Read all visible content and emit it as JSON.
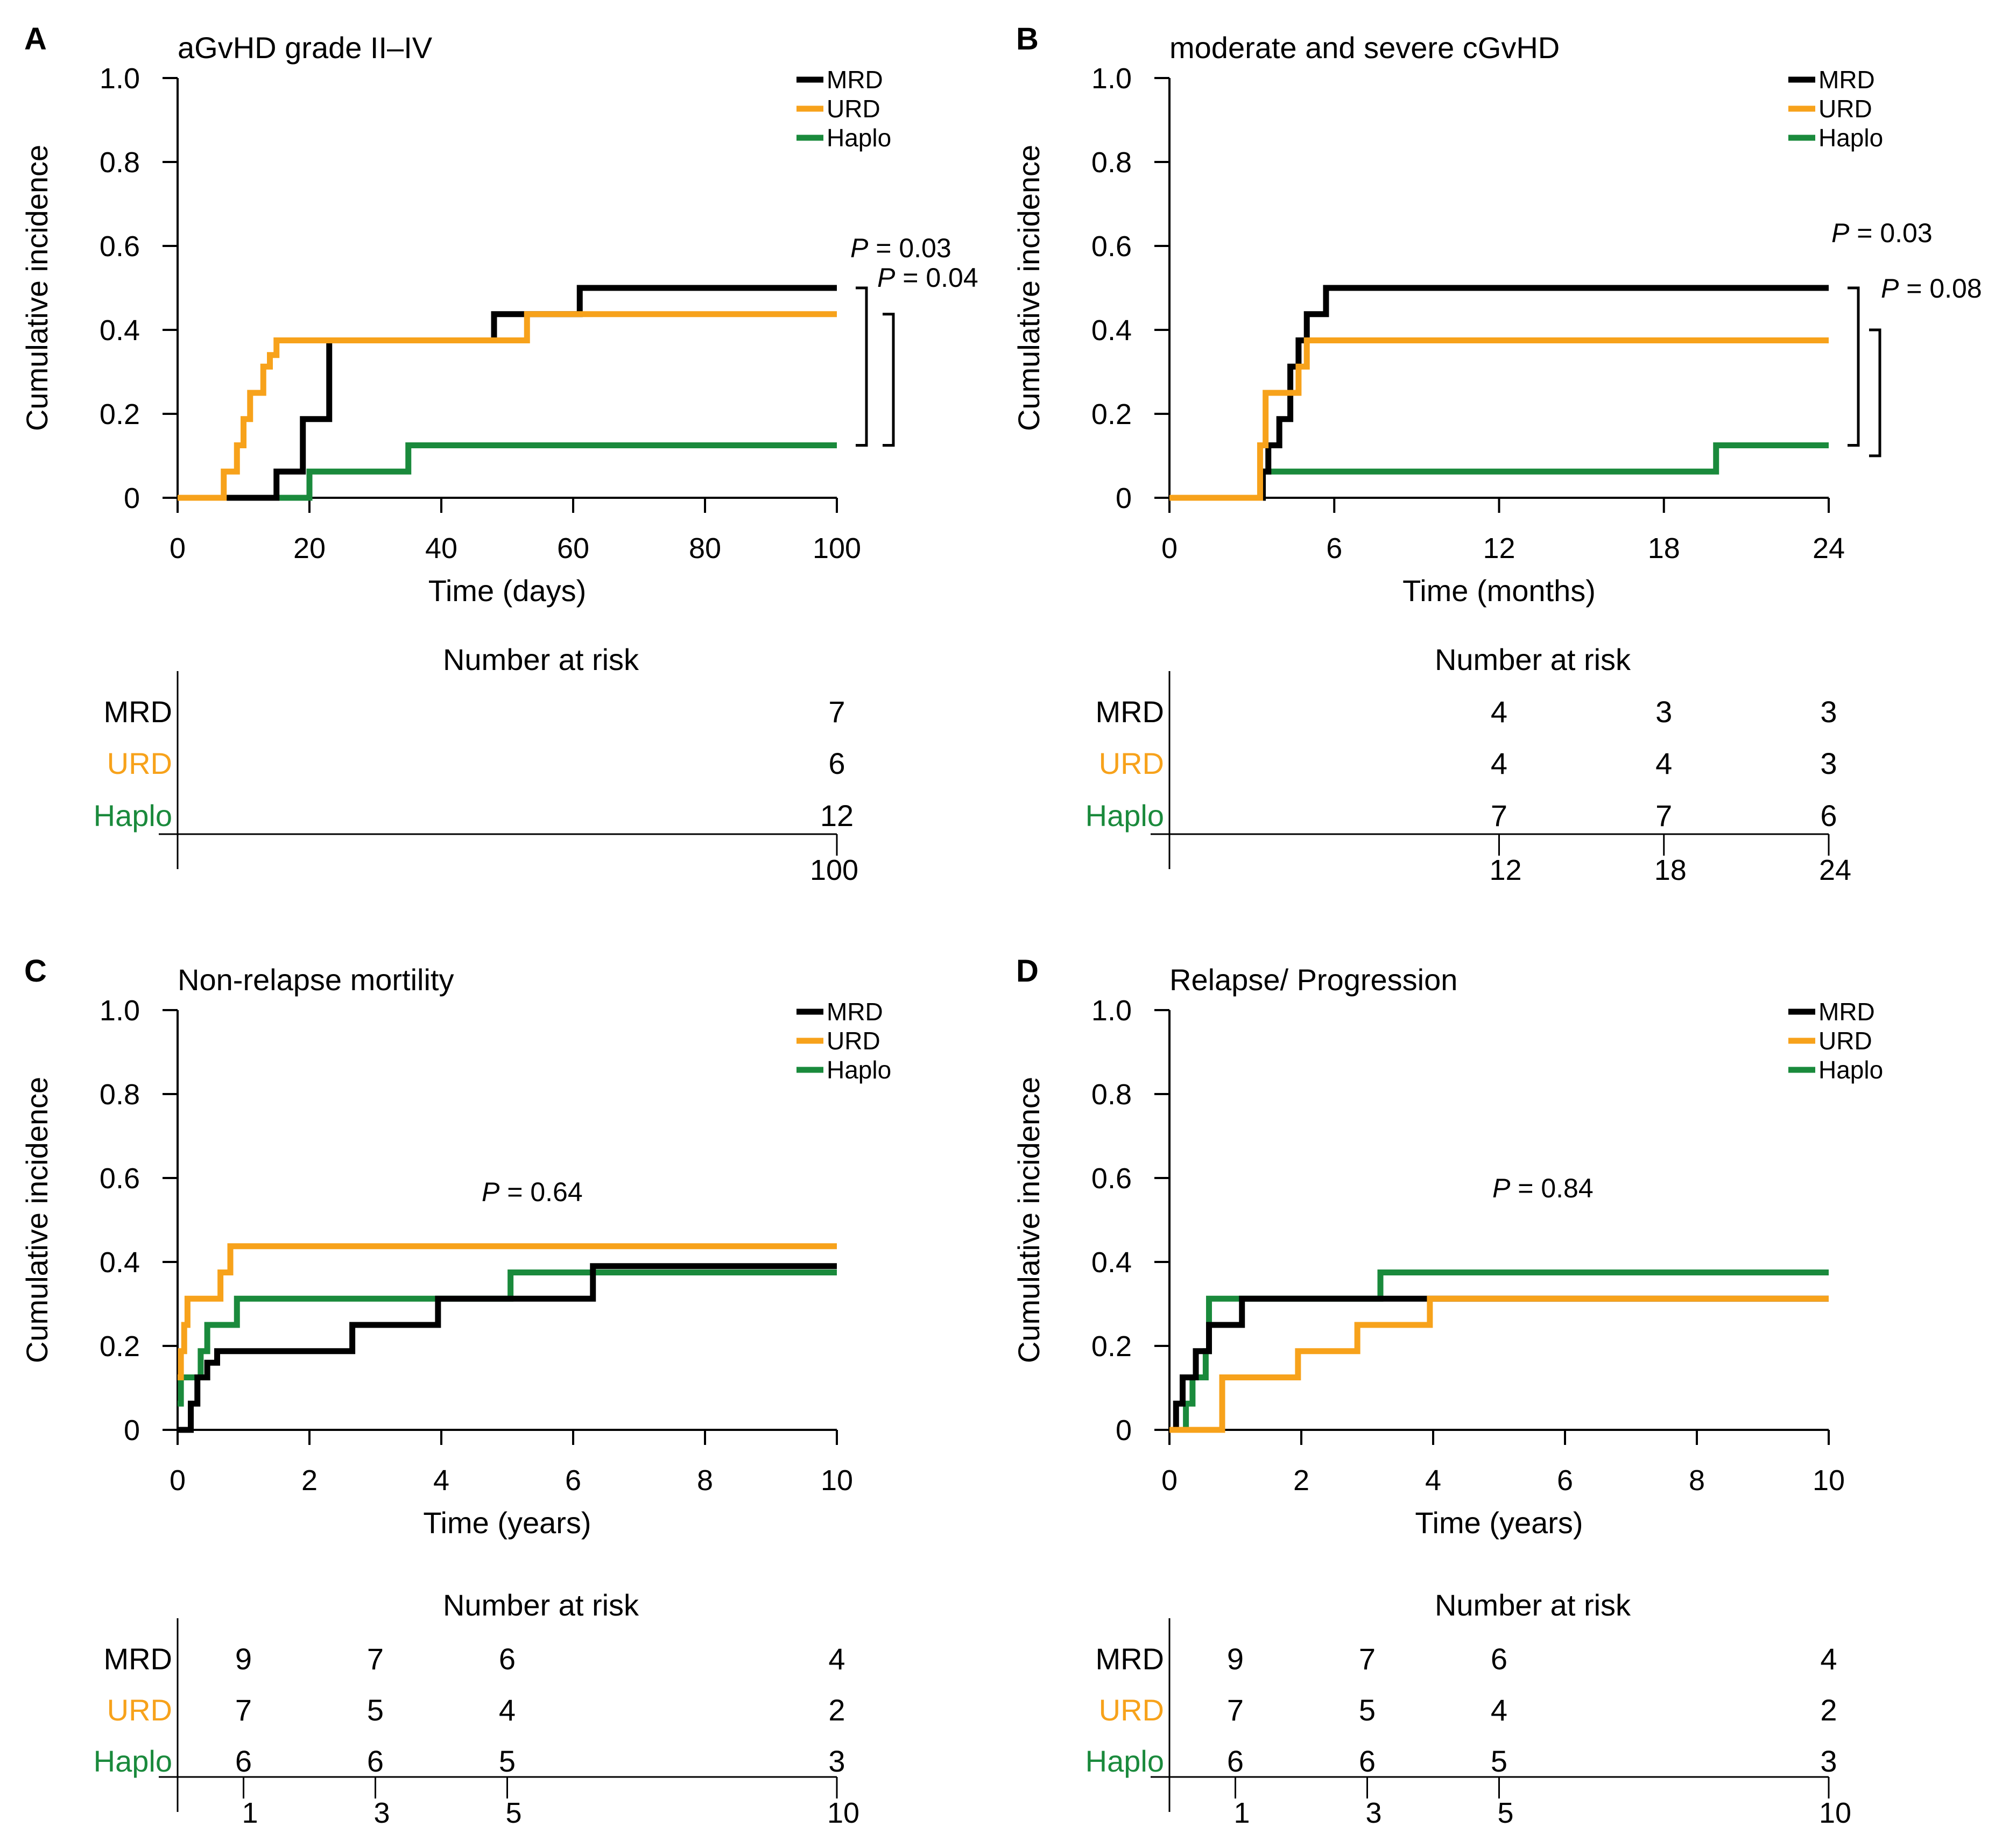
{
  "colors": {
    "MRD": "#000000",
    "URD": "#f7a21b",
    "Haplo": "#1a8a3c"
  },
  "chart_data": [
    {
      "panel": "A",
      "type": "line",
      "title": "aGvHD grade II–IV",
      "xlabel": "Time (days)",
      "ylabel": "Cumulative incidence",
      "xlim": [
        0,
        100
      ],
      "ylim": [
        0,
        1
      ],
      "xticks": [
        0,
        20,
        40,
        60,
        80,
        100
      ],
      "xtick_labels": [
        "0",
        "20",
        "40",
        "60",
        "80",
        "100"
      ],
      "yticks": [
        0,
        0.2,
        0.4,
        0.6,
        0.8,
        1.0
      ],
      "ytick_labels": [
        "0",
        "0.2",
        "0.4",
        "0.6",
        "0.8",
        "1.0"
      ],
      "legend": [
        "MRD",
        "URD",
        "Haplo"
      ],
      "series": [
        {
          "name": "MRD",
          "x": [
            0,
            15,
            19,
            23,
            48,
            61,
            100
          ],
          "y": [
            0,
            0.0625,
            0.1875,
            0.375,
            0.4375,
            0.5,
            0.5
          ]
        },
        {
          "name": "URD",
          "x": [
            0,
            7,
            9,
            10,
            11,
            13,
            14,
            15,
            53,
            100
          ],
          "y": [
            0,
            0.0625,
            0.125,
            0.1875,
            0.25,
            0.3125,
            0.34,
            0.375,
            0.4375,
            0.4375
          ]
        },
        {
          "name": "Haplo",
          "x": [
            0,
            20,
            35,
            100
          ],
          "y": [
            0,
            0.0625,
            0.125,
            0.125
          ]
        }
      ],
      "pvalues": [
        {
          "prefix": "P",
          "value": " = 0.03",
          "from": "MRD",
          "to": "Haplo"
        },
        {
          "prefix": "P",
          "value": " = 0.04",
          "from": "URD",
          "to": "Haplo"
        }
      ],
      "risk_table": {
        "title": "Number at risk",
        "time_labels": [
          "100"
        ],
        "time_values": [
          100
        ],
        "rows": [
          {
            "name": "MRD",
            "counts": [
              "7"
            ]
          },
          {
            "name": "URD",
            "counts": [
              "6"
            ]
          },
          {
            "name": "Haplo",
            "counts": [
              "12"
            ]
          }
        ]
      }
    },
    {
      "panel": "B",
      "type": "line",
      "title": "moderate and severe cGvHD",
      "xlabel": "Time (months)",
      "ylabel": "Cumulative incidence",
      "xlim": [
        0,
        24
      ],
      "ylim": [
        0,
        1
      ],
      "xticks": [
        0,
        6,
        12,
        18,
        24
      ],
      "xtick_labels": [
        "0",
        "6",
        "12",
        "18",
        "24"
      ],
      "yticks": [
        0,
        0.2,
        0.4,
        0.6,
        0.8,
        1.0
      ],
      "ytick_labels": [
        "0",
        "0.2",
        "0.4",
        "0.6",
        "0.8",
        "1.0"
      ],
      "legend": [
        "MRD",
        "URD",
        "Haplo"
      ],
      "series": [
        {
          "name": "MRD",
          "x": [
            0,
            3.4,
            3.6,
            4.0,
            4.4,
            4.7,
            5.0,
            5.7,
            24
          ],
          "y": [
            0,
            0.0625,
            0.125,
            0.1875,
            0.3125,
            0.375,
            0.4375,
            0.5,
            0.5
          ]
        },
        {
          "name": "URD",
          "x": [
            0,
            3.3,
            3.5,
            4.7,
            5.0,
            24
          ],
          "y": [
            0,
            0.125,
            0.25,
            0.3125,
            0.375,
            0.375
          ]
        },
        {
          "name": "Haplo",
          "x": [
            0,
            3.4,
            19.9,
            24
          ],
          "y": [
            0,
            0.0625,
            0.125,
            0.125
          ]
        }
      ],
      "pvalues": [
        {
          "prefix": "P",
          "value": " = 0.03",
          "from": "MRD",
          "to": "Haplo"
        },
        {
          "prefix": "P",
          "value": " = 0.08",
          "from": "URD",
          "to": "Haplo"
        }
      ],
      "risk_table": {
        "title": "Number at risk",
        "time_labels": [
          "12",
          "18",
          "24"
        ],
        "time_values": [
          12,
          18,
          24
        ],
        "rows": [
          {
            "name": "MRD",
            "counts": [
              "4",
              "3",
              "3"
            ]
          },
          {
            "name": "URD",
            "counts": [
              "4",
              "4",
              "3"
            ]
          },
          {
            "name": "Haplo",
            "counts": [
              "7",
              "7",
              "6"
            ]
          }
        ]
      }
    },
    {
      "panel": "C",
      "type": "line",
      "title": "Non-relapse mortility",
      "xlabel": "Time (years)",
      "ylabel": "Cumulative incidence",
      "xlim": [
        0,
        10
      ],
      "ylim": [
        0,
        1
      ],
      "xticks": [
        0,
        2,
        4,
        6,
        8,
        10
      ],
      "xtick_labels": [
        "0",
        "2",
        "4",
        "6",
        "8",
        "10"
      ],
      "yticks": [
        0,
        0.2,
        0.4,
        0.6,
        0.8,
        1.0
      ],
      "ytick_labels": [
        "0",
        "0.2",
        "0.4",
        "0.6",
        "0.8",
        "1.0"
      ],
      "legend": [
        "MRD",
        "URD",
        "Haplo"
      ],
      "series": [
        {
          "name": "MRD",
          "x": [
            0,
            0.2,
            0.3,
            0.45,
            0.6,
            2.65,
            3.95,
            6.3,
            10
          ],
          "y": [
            0,
            0.0625,
            0.125,
            0.16,
            0.1875,
            0.25,
            0.3125,
            0.39,
            0.39
          ]
        },
        {
          "name": "URD",
          "x": [
            0,
            0.05,
            0.1,
            0.15,
            0.2,
            0.65,
            0.8,
            10
          ],
          "y": [
            0.125,
            0.1875,
            0.25,
            0.3125,
            0.3125,
            0.375,
            0.4375,
            0.4375
          ]
        },
        {
          "name": "Haplo",
          "x": [
            0,
            0.05,
            0.35,
            0.45,
            0.9,
            5.05,
            10
          ],
          "y": [
            0.0625,
            0.125,
            0.1875,
            0.25,
            0.3125,
            0.375,
            0.375
          ]
        }
      ],
      "pvalues": [
        {
          "prefix": "P",
          "value": " = 0.64"
        }
      ],
      "risk_table": {
        "title": "Number at risk",
        "time_labels": [
          "1",
          "3",
          "5",
          "10"
        ],
        "time_values": [
          1,
          3,
          5,
          10
        ],
        "rows": [
          {
            "name": "MRD",
            "counts": [
              "9",
              "7",
              "6",
              "4"
            ]
          },
          {
            "name": "URD",
            "counts": [
              "7",
              "5",
              "4",
              "2"
            ]
          },
          {
            "name": "Haplo",
            "counts": [
              "6",
              "6",
              "5",
              "3"
            ]
          }
        ]
      }
    },
    {
      "panel": "D",
      "type": "line",
      "title": "Relapse/ Progression",
      "xlabel": "Time (years)",
      "ylabel": "Cumulative incidence",
      "xlim": [
        0,
        10
      ],
      "ylim": [
        0,
        1
      ],
      "xticks": [
        0,
        2,
        4,
        6,
        8,
        10
      ],
      "xtick_labels": [
        "0",
        "2",
        "4",
        "6",
        "8",
        "10"
      ],
      "yticks": [
        0,
        0.2,
        0.4,
        0.6,
        0.8,
        1.0
      ],
      "ytick_labels": [
        "0",
        "0.2",
        "0.4",
        "0.6",
        "0.8",
        "1.0"
      ],
      "legend": [
        "MRD",
        "URD",
        "Haplo"
      ],
      "series": [
        {
          "name": "MRD",
          "x": [
            0,
            0.1,
            0.2,
            0.4,
            0.6,
            1.1,
            3.3,
            10
          ],
          "y": [
            0,
            0.0625,
            0.125,
            0.1875,
            0.25,
            0.3125,
            0.3125,
            0.3125
          ]
        },
        {
          "name": "URD",
          "x": [
            0,
            0.8,
            1.95,
            2.85,
            3.95,
            10
          ],
          "y": [
            0,
            0.125,
            0.1875,
            0.25,
            0.3125,
            0.3125
          ]
        },
        {
          "name": "Haplo",
          "x": [
            0,
            0.25,
            0.35,
            0.55,
            0.6,
            3.2,
            10
          ],
          "y": [
            0,
            0.0625,
            0.125,
            0.1875,
            0.3125,
            0.375,
            0.375
          ]
        }
      ],
      "pvalues": [
        {
          "prefix": "P",
          "value": " = 0.84"
        }
      ],
      "risk_table": {
        "title": "Number at risk",
        "time_labels": [
          "1",
          "3",
          "5",
          "10"
        ],
        "time_values": [
          1,
          3,
          5,
          10
        ],
        "rows": [
          {
            "name": "MRD",
            "counts": [
              "9",
              "7",
              "6",
              "4"
            ]
          },
          {
            "name": "URD",
            "counts": [
              "7",
              "5",
              "4",
              "2"
            ]
          },
          {
            "name": "Haplo",
            "counts": [
              "6",
              "6",
              "5",
              "3"
            ]
          }
        ]
      }
    }
  ]
}
